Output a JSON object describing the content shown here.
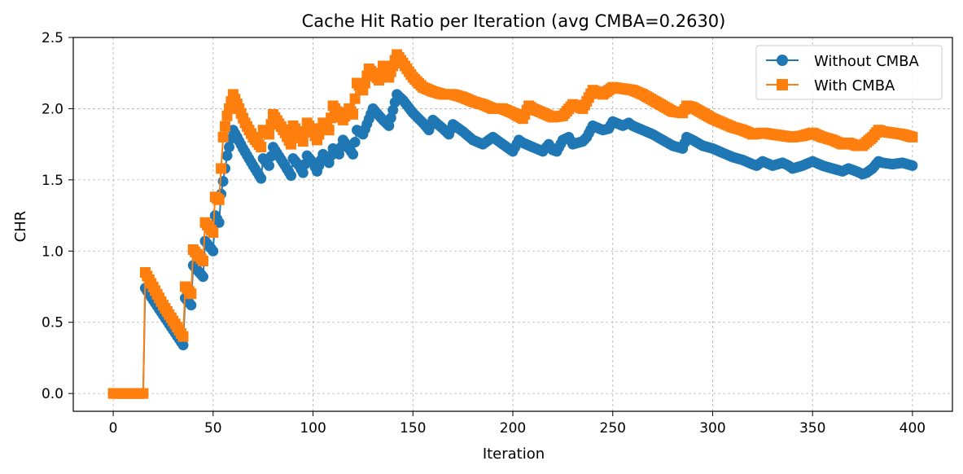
{
  "chart_data": {
    "type": "line",
    "title": "Cache Hit Ratio per Iteration (avg CMBA=0.2630)",
    "xlabel": "Iteration",
    "ylabel": "CHR",
    "xlim": [
      -20,
      420
    ],
    "ylim": [
      -0.125,
      2.5
    ],
    "xticks": [
      0,
      50,
      100,
      150,
      200,
      250,
      300,
      350,
      400
    ],
    "yticks": [
      0.0,
      0.5,
      1.0,
      1.5,
      2.0,
      2.5
    ],
    "xtick_labels": [
      "0",
      "50",
      "100",
      "150",
      "200",
      "250",
      "300",
      "350",
      "400"
    ],
    "ytick_labels": [
      "0.0",
      "0.5",
      "1.0",
      "1.5",
      "2.0",
      "2.5"
    ],
    "grid": true,
    "legend_position": "top-right",
    "series": [
      {
        "name": "Without CMBA",
        "color": "#1f77b4",
        "marker": "circle",
        "keypoints": [
          [
            0,
            0
          ],
          [
            15,
            0
          ],
          [
            16,
            0.74
          ],
          [
            25,
            0.55
          ],
          [
            35,
            0.34
          ],
          [
            36,
            0.67
          ],
          [
            39,
            0.62
          ],
          [
            40,
            0.9
          ],
          [
            45,
            0.82
          ],
          [
            46,
            1.07
          ],
          [
            50,
            1.0
          ],
          [
            51,
            1.25
          ],
          [
            53,
            1.2
          ],
          [
            54,
            1.4
          ],
          [
            57,
            1.67
          ],
          [
            60,
            1.85
          ],
          [
            62,
            1.8
          ],
          [
            65,
            1.72
          ],
          [
            70,
            1.6
          ],
          [
            74,
            1.51
          ],
          [
            75,
            1.65
          ],
          [
            78,
            1.6
          ],
          [
            80,
            1.73
          ],
          [
            86,
            1.6
          ],
          [
            89,
            1.53
          ],
          [
            90,
            1.65
          ],
          [
            93,
            1.6
          ],
          [
            95,
            1.55
          ],
          [
            97,
            1.67
          ],
          [
            100,
            1.62
          ],
          [
            102,
            1.56
          ],
          [
            105,
            1.68
          ],
          [
            108,
            1.62
          ],
          [
            110,
            1.72
          ],
          [
            113,
            1.68
          ],
          [
            115,
            1.78
          ],
          [
            118,
            1.72
          ],
          [
            120,
            1.68
          ],
          [
            122,
            1.85
          ],
          [
            125,
            1.82
          ],
          [
            130,
            2.0
          ],
          [
            135,
            1.92
          ],
          [
            138,
            1.88
          ],
          [
            142,
            2.1
          ],
          [
            145,
            2.06
          ],
          [
            150,
            1.97
          ],
          [
            155,
            1.9
          ],
          [
            158,
            1.85
          ],
          [
            160,
            1.92
          ],
          [
            165,
            1.86
          ],
          [
            168,
            1.82
          ],
          [
            170,
            1.89
          ],
          [
            175,
            1.84
          ],
          [
            180,
            1.78
          ],
          [
            185,
            1.75
          ],
          [
            190,
            1.8
          ],
          [
            195,
            1.75
          ],
          [
            200,
            1.7
          ],
          [
            203,
            1.78
          ],
          [
            205,
            1.76
          ],
          [
            210,
            1.73
          ],
          [
            215,
            1.7
          ],
          [
            218,
            1.75
          ],
          [
            220,
            1.71
          ],
          [
            222,
            1.7
          ],
          [
            225,
            1.78
          ],
          [
            228,
            1.8
          ],
          [
            230,
            1.75
          ],
          [
            235,
            1.77
          ],
          [
            237,
            1.8
          ],
          [
            240,
            1.88
          ],
          [
            245,
            1.85
          ],
          [
            248,
            1.86
          ],
          [
            250,
            1.91
          ],
          [
            255,
            1.88
          ],
          [
            258,
            1.9
          ],
          [
            260,
            1.88
          ],
          [
            265,
            1.85
          ],
          [
            270,
            1.82
          ],
          [
            275,
            1.78
          ],
          [
            280,
            1.74
          ],
          [
            285,
            1.72
          ],
          [
            287,
            1.8
          ],
          [
            290,
            1.78
          ],
          [
            295,
            1.74
          ],
          [
            300,
            1.72
          ],
          [
            305,
            1.69
          ],
          [
            310,
            1.66
          ],
          [
            315,
            1.64
          ],
          [
            320,
            1.61
          ],
          [
            322,
            1.6
          ],
          [
            325,
            1.63
          ],
          [
            330,
            1.6
          ],
          [
            335,
            1.62
          ],
          [
            338,
            1.6
          ],
          [
            340,
            1.58
          ],
          [
            345,
            1.6
          ],
          [
            350,
            1.63
          ],
          [
            355,
            1.6
          ],
          [
            360,
            1.58
          ],
          [
            365,
            1.56
          ],
          [
            368,
            1.58
          ],
          [
            372,
            1.56
          ],
          [
            375,
            1.54
          ],
          [
            377,
            1.55
          ],
          [
            380,
            1.58
          ],
          [
            383,
            1.63
          ],
          [
            385,
            1.62
          ],
          [
            390,
            1.61
          ],
          [
            395,
            1.62
          ],
          [
            400,
            1.6
          ]
        ]
      },
      {
        "name": "With CMBA",
        "color": "#ff7f0e",
        "marker": "square",
        "keypoints": [
          [
            0,
            0
          ],
          [
            15,
            0
          ],
          [
            16,
            0.85
          ],
          [
            25,
            0.62
          ],
          [
            35,
            0.4
          ],
          [
            36,
            0.75
          ],
          [
            39,
            0.7
          ],
          [
            40,
            1.01
          ],
          [
            45,
            0.93
          ],
          [
            46,
            1.2
          ],
          [
            50,
            1.13
          ],
          [
            51,
            1.38
          ],
          [
            53,
            1.36
          ],
          [
            54,
            1.58
          ],
          [
            55,
            1.8
          ],
          [
            57,
            1.95
          ],
          [
            60,
            2.1
          ],
          [
            63,
            2.0
          ],
          [
            66,
            1.9
          ],
          [
            70,
            1.8
          ],
          [
            74,
            1.73
          ],
          [
            75,
            1.85
          ],
          [
            78,
            1.82
          ],
          [
            80,
            1.96
          ],
          [
            86,
            1.83
          ],
          [
            89,
            1.75
          ],
          [
            90,
            1.88
          ],
          [
            93,
            1.82
          ],
          [
            95,
            1.77
          ],
          [
            97,
            1.9
          ],
          [
            100,
            1.84
          ],
          [
            102,
            1.78
          ],
          [
            105,
            1.9
          ],
          [
            108,
            1.85
          ],
          [
            110,
            2.02
          ],
          [
            113,
            1.96
          ],
          [
            115,
            1.92
          ],
          [
            118,
            2.0
          ],
          [
            120,
            1.96
          ],
          [
            122,
            2.18
          ],
          [
            125,
            2.13
          ],
          [
            128,
            2.28
          ],
          [
            133,
            2.2
          ],
          [
            135,
            2.3
          ],
          [
            138,
            2.22
          ],
          [
            142,
            2.38
          ],
          [
            145,
            2.32
          ],
          [
            150,
            2.22
          ],
          [
            155,
            2.15
          ],
          [
            160,
            2.12
          ],
          [
            165,
            2.1
          ],
          [
            170,
            2.1
          ],
          [
            175,
            2.08
          ],
          [
            180,
            2.05
          ],
          [
            185,
            2.03
          ],
          [
            190,
            2.0
          ],
          [
            195,
            2.0
          ],
          [
            200,
            1.97
          ],
          [
            205,
            1.93
          ],
          [
            208,
            2.02
          ],
          [
            210,
            2.0
          ],
          [
            215,
            1.97
          ],
          [
            220,
            1.94
          ],
          [
            225,
            1.95
          ],
          [
            230,
            2.03
          ],
          [
            235,
            2.0
          ],
          [
            240,
            2.13
          ],
          [
            245,
            2.1
          ],
          [
            250,
            2.15
          ],
          [
            255,
            2.14
          ],
          [
            260,
            2.13
          ],
          [
            265,
            2.1
          ],
          [
            270,
            2.06
          ],
          [
            275,
            2.02
          ],
          [
            280,
            1.98
          ],
          [
            285,
            1.97
          ],
          [
            287,
            2.02
          ],
          [
            290,
            2.01
          ],
          [
            295,
            1.97
          ],
          [
            300,
            1.93
          ],
          [
            305,
            1.9
          ],
          [
            310,
            1.87
          ],
          [
            315,
            1.85
          ],
          [
            320,
            1.82
          ],
          [
            325,
            1.83
          ],
          [
            330,
            1.82
          ],
          [
            335,
            1.81
          ],
          [
            340,
            1.8
          ],
          [
            345,
            1.81
          ],
          [
            350,
            1.83
          ],
          [
            355,
            1.8
          ],
          [
            360,
            1.78
          ],
          [
            365,
            1.75
          ],
          [
            368,
            1.76
          ],
          [
            372,
            1.74
          ],
          [
            375,
            1.74
          ],
          [
            380,
            1.8
          ],
          [
            383,
            1.85
          ],
          [
            385,
            1.84
          ],
          [
            390,
            1.83
          ],
          [
            395,
            1.82
          ],
          [
            400,
            1.8
          ]
        ]
      }
    ]
  }
}
